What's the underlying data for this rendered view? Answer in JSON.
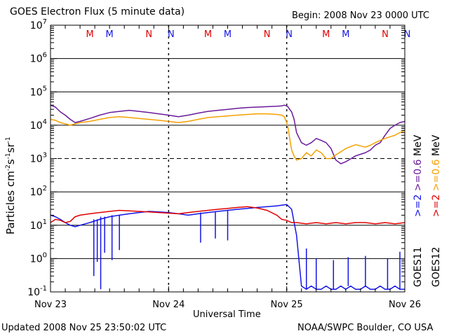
{
  "header": {
    "title": "GOES Electron Flux (5 minute data)",
    "begin": "Begin: 2008 Nov 23 0000 UTC"
  },
  "footer": {
    "updated": "Updated 2008 Nov 25 23:50:02 UTC",
    "credit": "NOAA/SWPC Boulder, CO USA"
  },
  "side_legend": {
    "low_energy": {
      "label": "MeV",
      "goes12": ">=0.6",
      "goes11": ">=0.6",
      "goes12_color": "#f5a000",
      "goes11_color": "#6a1b9a"
    },
    "high_energy": {
      "goes12": ">=2",
      "goes11": ">=2",
      "goes12_color": "#e00000",
      "goes11_color": "#1414e6"
    },
    "sat11": "GOES11",
    "sat12": "GOES12"
  },
  "colors": {
    "goes11_low": "#6a1b9a",
    "goes12_low": "#f5a000",
    "goes11_high": "#1414e6",
    "goes12_high": "#e00000",
    "M_marker": "#e00000",
    "N_marker": "#1414e6"
  },
  "chart_data": {
    "type": "line",
    "title": "GOES Electron Flux (5 minute data)",
    "xlabel": "Universal Time",
    "ylabel": "Particles cm-2s-1sr-1",
    "yscale": "log",
    "xlim": [
      0,
      72
    ],
    "x_unit": "hours since 2008 Nov 23 0000 UTC",
    "ylim": [
      0.1,
      10000000
    ],
    "x_ticks": [
      {
        "x": 0,
        "label": "Nov 23"
      },
      {
        "x": 24,
        "label": "Nov 24"
      },
      {
        "x": 48,
        "label": "Nov 25"
      },
      {
        "x": 72,
        "label": "Nov 26"
      }
    ],
    "y_ticks": [
      {
        "exp": -1,
        "base": "10",
        "sup": "-1"
      },
      {
        "exp": 0,
        "base": "10",
        "sup": "0"
      },
      {
        "exp": 1,
        "base": "10",
        "sup": "1"
      },
      {
        "exp": 2,
        "base": "10",
        "sup": "2"
      },
      {
        "exp": 3,
        "base": "10",
        "sup": "3"
      },
      {
        "exp": 4,
        "base": "10",
        "sup": "4"
      },
      {
        "exp": 5,
        "base": "10",
        "sup": "5"
      },
      {
        "exp": 6,
        "base": "10",
        "sup": "6"
      },
      {
        "exp": 7,
        "base": "10",
        "sup": "7"
      }
    ],
    "markers": [
      {
        "x": 8,
        "label": "M",
        "color": "#e00000"
      },
      {
        "x": 12,
        "label": "M",
        "color": "#1414e6"
      },
      {
        "x": 20,
        "label": "N",
        "color": "#e00000"
      },
      {
        "x": 24.5,
        "label": "N",
        "color": "#1414e6"
      },
      {
        "x": 32,
        "label": "M",
        "color": "#e00000"
      },
      {
        "x": 36,
        "label": "M",
        "color": "#1414e6"
      },
      {
        "x": 44,
        "label": "N",
        "color": "#e00000"
      },
      {
        "x": 48.5,
        "label": "N",
        "color": "#1414e6"
      },
      {
        "x": 56,
        "label": "M",
        "color": "#e00000"
      },
      {
        "x": 60,
        "label": "M",
        "color": "#1414e6"
      },
      {
        "x": 68,
        "label": "N",
        "color": "#e00000"
      },
      {
        "x": 72.5,
        "label": "N",
        "color": "#1414e6"
      }
    ],
    "series": [
      {
        "name": "GOES11 >=0.6 MeV",
        "color": "#6a1b9a",
        "x": [
          0,
          1,
          2,
          3,
          4,
          5,
          6,
          8,
          10,
          12,
          14,
          16,
          18,
          20,
          22,
          24,
          26,
          28,
          30,
          32,
          34,
          36,
          38,
          40,
          42,
          44,
          46,
          47,
          47.5,
          48,
          48.3,
          48.6,
          49,
          49.5,
          50,
          51,
          52,
          53,
          54,
          55,
          56,
          57,
          58,
          59,
          60,
          62,
          64,
          65,
          66,
          67,
          68,
          69,
          70,
          71,
          72
        ],
        "y": [
          40000,
          35000,
          25000,
          20000,
          15000,
          12000,
          13000,
          16000,
          20000,
          24000,
          26000,
          28000,
          26000,
          24000,
          22000,
          20000,
          18000,
          20000,
          23000,
          26000,
          28000,
          30000,
          32000,
          34000,
          35000,
          36000,
          37000,
          38000,
          40000,
          38000,
          35000,
          30000,
          25000,
          15000,
          6000,
          3000,
          2500,
          3000,
          4000,
          3500,
          3000,
          2000,
          900,
          700,
          800,
          1200,
          1500,
          1800,
          2500,
          3000,
          5000,
          8000,
          10000,
          12000,
          13000
        ]
      },
      {
        "name": "GOES12 >=0.6 MeV",
        "color": "#f5a000",
        "x": [
          0,
          1,
          2,
          3,
          4,
          5,
          6,
          8,
          10,
          12,
          14,
          16,
          18,
          20,
          22,
          24,
          26,
          28,
          30,
          32,
          34,
          36,
          38,
          40,
          42,
          44,
          46,
          47,
          47.5,
          48,
          48.3,
          48.6,
          49,
          49.5,
          50,
          51,
          52,
          53,
          54,
          55,
          56,
          57,
          58,
          59,
          60,
          62,
          64,
          65,
          66,
          67,
          68,
          69,
          70,
          71,
          72
        ],
        "y": [
          15000,
          14000,
          12000,
          11000,
          10000,
          11000,
          12000,
          13000,
          15000,
          17000,
          18000,
          17000,
          16000,
          15000,
          14000,
          13000,
          12000,
          13000,
          15000,
          17000,
          18000,
          19000,
          20000,
          21000,
          22000,
          22000,
          21000,
          20000,
          18000,
          12000,
          8000,
          4000,
          1800,
          1200,
          900,
          1000,
          1500,
          1200,
          1800,
          1500,
          1000,
          1000,
          1300,
          1600,
          2000,
          2600,
          2200,
          2500,
          3000,
          3500,
          4000,
          4500,
          5000,
          6000,
          7000
        ]
      },
      {
        "name": "GOES11 >=2 MeV",
        "color": "#1414e6",
        "x": [
          0,
          1,
          2,
          3,
          4,
          5,
          6,
          8,
          10,
          12,
          14,
          16,
          18,
          20,
          22,
          24,
          26,
          28,
          30,
          32,
          34,
          36,
          38,
          40,
          42,
          44,
          46,
          47,
          48,
          49,
          50,
          51,
          52,
          53,
          54,
          55,
          56,
          57,
          58,
          59,
          60,
          61,
          62,
          63,
          64,
          65,
          66,
          67,
          68,
          69,
          70,
          71,
          72
        ],
        "y": [
          20,
          18,
          15,
          12,
          10,
          9,
          10,
          12,
          15,
          18,
          20,
          22,
          24,
          26,
          25,
          24,
          22,
          20,
          22,
          24,
          26,
          28,
          30,
          32,
          34,
          36,
          38,
          40,
          42,
          30,
          5,
          0.15,
          0.12,
          0.15,
          0.12,
          0.12,
          0.15,
          0.12,
          0.12,
          0.15,
          0.12,
          0.15,
          0.12,
          0.12,
          0.15,
          0.12,
          0.12,
          0.15,
          0.12,
          0.12,
          0.15,
          0.12,
          0.12
        ],
        "spikes": [
          {
            "x": 8.8,
            "low": 0.3
          },
          {
            "x": 9.5,
            "low": 0.8
          },
          {
            "x": 10.2,
            "low": 0.12
          },
          {
            "x": 11.0,
            "low": 1.5
          },
          {
            "x": 12.5,
            "low": 0.9
          },
          {
            "x": 14.0,
            "low": 1.8
          },
          {
            "x": 30.5,
            "low": 3.0
          },
          {
            "x": 33.5,
            "low": 4.0
          },
          {
            "x": 36.0,
            "low": 3.5
          },
          {
            "x": 52.0,
            "low": 2.0
          },
          {
            "x": 54.0,
            "low": 1.0
          },
          {
            "x": 57.5,
            "low": 0.9
          },
          {
            "x": 60.5,
            "low": 1.1
          },
          {
            "x": 64.0,
            "low": 1.2
          },
          {
            "x": 68.5,
            "low": 1.0
          },
          {
            "x": 71.0,
            "low": 1.6
          }
        ]
      },
      {
        "name": "GOES12 >=2 MeV",
        "color": "#e00000",
        "x": [
          0,
          1,
          2,
          3,
          4,
          5,
          6,
          8,
          10,
          12,
          14,
          16,
          18,
          20,
          22,
          24,
          26,
          28,
          30,
          32,
          34,
          36,
          38,
          40,
          42,
          44,
          46,
          47,
          48,
          49,
          50,
          52,
          54,
          56,
          58,
          60,
          62,
          64,
          66,
          68,
          70,
          72
        ],
        "y": [
          12,
          15,
          14,
          12,
          13,
          18,
          20,
          22,
          24,
          26,
          28,
          27,
          26,
          25,
          24,
          23,
          22,
          24,
          26,
          28,
          30,
          32,
          34,
          36,
          33,
          28,
          20,
          15,
          14,
          12,
          12,
          11,
          12,
          11,
          12,
          11,
          12,
          12,
          11,
          12,
          11,
          12
        ]
      }
    ]
  },
  "axis_labels": {
    "x": "Universal Time",
    "y_main": "Particles cm",
    "y_sup1": "-2",
    "y_mid": "s",
    "y_sup2": "-1",
    "y_mid2": "sr",
    "y_sup3": "-1"
  }
}
